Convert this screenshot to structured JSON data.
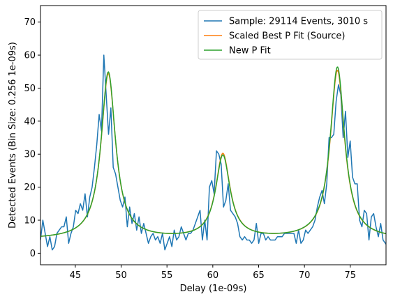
{
  "chart_data": {
    "type": "line",
    "xlabel": "Delay (1e-09s)",
    "ylabel": "Detected Events (Bin Size: 0.256 1e-09s)",
    "xlim": [
      41.2,
      78.9
    ],
    "ylim": [
      -3.5,
      75
    ],
    "xticks": [
      45,
      50,
      55,
      60,
      65,
      70,
      75
    ],
    "yticks": [
      0,
      10,
      20,
      30,
      40,
      50,
      60,
      70
    ],
    "grid": false,
    "legend_position": "top-right",
    "series": [
      {
        "name": "Sample: 29114 Events, 3010 s",
        "color": "#1f77b4",
        "x_start": 41.2,
        "x_step": 0.256,
        "values": [
          4,
          10,
          6,
          2,
          5,
          1,
          2,
          6,
          7,
          8,
          8,
          11,
          3,
          6,
          8,
          13,
          12,
          15,
          13,
          18,
          11,
          17,
          20,
          26,
          33,
          42,
          37,
          60,
          48,
          36,
          44,
          26,
          24,
          20,
          16,
          14,
          17,
          8,
          14,
          9,
          12,
          7,
          11,
          6,
          9,
          6,
          3,
          5,
          6,
          4,
          5,
          3,
          6,
          1,
          3,
          5,
          2,
          7,
          4,
          5,
          8,
          6,
          4,
          6,
          6,
          7,
          9,
          11,
          13,
          4,
          10,
          4,
          20,
          22,
          18,
          31,
          30,
          27,
          14,
          16,
          21,
          13,
          12,
          11,
          9,
          5,
          4,
          5,
          4,
          4,
          3,
          4,
          9,
          3,
          6,
          6,
          4,
          5,
          4,
          4,
          4,
          5,
          5,
          5,
          6,
          6,
          6,
          6,
          6,
          3,
          7,
          3,
          4,
          7,
          6,
          7,
          8,
          10,
          14,
          17,
          19,
          15,
          21,
          35,
          35,
          36,
          46,
          51,
          48,
          35,
          43,
          29,
          34,
          23,
          21,
          21,
          10,
          8,
          13,
          12,
          4,
          11,
          12,
          8,
          5,
          9,
          4,
          3,
          2
        ]
      },
      {
        "name": "Scaled Best P Fit (Source)",
        "color": "#ff7f0e",
        "baseline": 4.2,
        "peaks": [
          {
            "x0": 48.6,
            "amp": 50.0,
            "gamma": 0.95
          },
          {
            "x0": 61.1,
            "amp": 25.5,
            "gamma": 0.95
          },
          {
            "x0": 73.6,
            "amp": 51.0,
            "gamma": 0.95
          }
        ]
      },
      {
        "name": "New P Fit",
        "color": "#2ca02c",
        "baseline": 4.2,
        "peaks": [
          {
            "x0": 48.6,
            "amp": 50.5,
            "gamma": 0.95
          },
          {
            "x0": 61.1,
            "amp": 25.0,
            "gamma": 0.95
          },
          {
            "x0": 73.6,
            "amp": 52.0,
            "gamma": 0.95
          }
        ]
      }
    ]
  }
}
